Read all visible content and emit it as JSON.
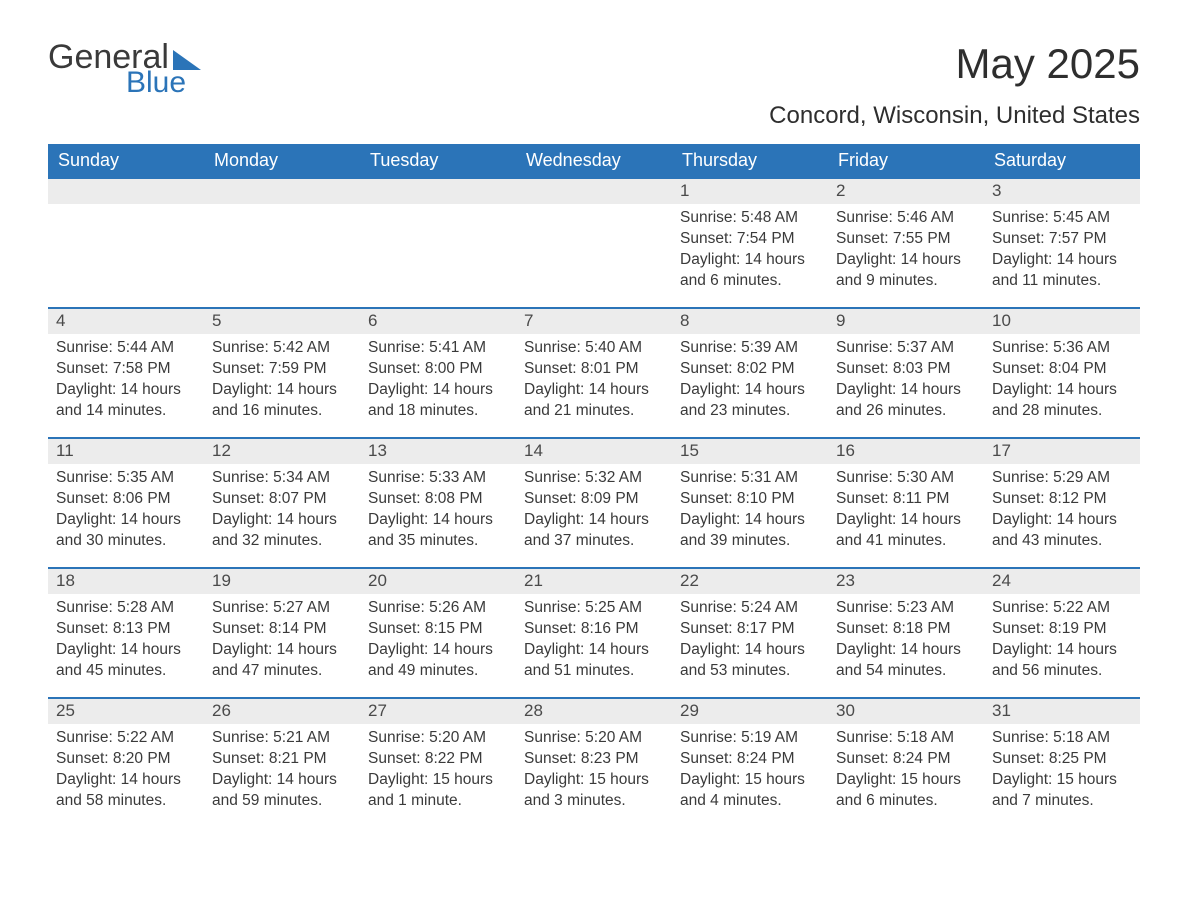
{
  "logo": {
    "word1": "General",
    "word2": "Blue",
    "triangle_color": "#2b74b8"
  },
  "header": {
    "title": "May 2025",
    "location": "Concord, Wisconsin, United States"
  },
  "colors": {
    "header_bg": "#2b74b8",
    "header_text": "#ffffff",
    "daynum_bg": "#ececec",
    "border_top": "#2b74b8",
    "body_text": "#3a3a3a",
    "page_bg": "#ffffff"
  },
  "typography": {
    "title_fontsize": 42,
    "subtitle_fontsize": 24,
    "dow_fontsize": 18,
    "daynum_fontsize": 17,
    "body_fontsize": 15.5,
    "font_family": "Arial"
  },
  "calendar": {
    "columns": [
      "Sunday",
      "Monday",
      "Tuesday",
      "Wednesday",
      "Thursday",
      "Friday",
      "Saturday"
    ],
    "weeks": [
      [
        {
          "day": "",
          "sunrise": "",
          "sunset": "",
          "daylight": ""
        },
        {
          "day": "",
          "sunrise": "",
          "sunset": "",
          "daylight": ""
        },
        {
          "day": "",
          "sunrise": "",
          "sunset": "",
          "daylight": ""
        },
        {
          "day": "",
          "sunrise": "",
          "sunset": "",
          "daylight": ""
        },
        {
          "day": "1",
          "sunrise": "Sunrise: 5:48 AM",
          "sunset": "Sunset: 7:54 PM",
          "daylight": "Daylight: 14 hours and 6 minutes."
        },
        {
          "day": "2",
          "sunrise": "Sunrise: 5:46 AM",
          "sunset": "Sunset: 7:55 PM",
          "daylight": "Daylight: 14 hours and 9 minutes."
        },
        {
          "day": "3",
          "sunrise": "Sunrise: 5:45 AM",
          "sunset": "Sunset: 7:57 PM",
          "daylight": "Daylight: 14 hours and 11 minutes."
        }
      ],
      [
        {
          "day": "4",
          "sunrise": "Sunrise: 5:44 AM",
          "sunset": "Sunset: 7:58 PM",
          "daylight": "Daylight: 14 hours and 14 minutes."
        },
        {
          "day": "5",
          "sunrise": "Sunrise: 5:42 AM",
          "sunset": "Sunset: 7:59 PM",
          "daylight": "Daylight: 14 hours and 16 minutes."
        },
        {
          "day": "6",
          "sunrise": "Sunrise: 5:41 AM",
          "sunset": "Sunset: 8:00 PM",
          "daylight": "Daylight: 14 hours and 18 minutes."
        },
        {
          "day": "7",
          "sunrise": "Sunrise: 5:40 AM",
          "sunset": "Sunset: 8:01 PM",
          "daylight": "Daylight: 14 hours and 21 minutes."
        },
        {
          "day": "8",
          "sunrise": "Sunrise: 5:39 AM",
          "sunset": "Sunset: 8:02 PM",
          "daylight": "Daylight: 14 hours and 23 minutes."
        },
        {
          "day": "9",
          "sunrise": "Sunrise: 5:37 AM",
          "sunset": "Sunset: 8:03 PM",
          "daylight": "Daylight: 14 hours and 26 minutes."
        },
        {
          "day": "10",
          "sunrise": "Sunrise: 5:36 AM",
          "sunset": "Sunset: 8:04 PM",
          "daylight": "Daylight: 14 hours and 28 minutes."
        }
      ],
      [
        {
          "day": "11",
          "sunrise": "Sunrise: 5:35 AM",
          "sunset": "Sunset: 8:06 PM",
          "daylight": "Daylight: 14 hours and 30 minutes."
        },
        {
          "day": "12",
          "sunrise": "Sunrise: 5:34 AM",
          "sunset": "Sunset: 8:07 PM",
          "daylight": "Daylight: 14 hours and 32 minutes."
        },
        {
          "day": "13",
          "sunrise": "Sunrise: 5:33 AM",
          "sunset": "Sunset: 8:08 PM",
          "daylight": "Daylight: 14 hours and 35 minutes."
        },
        {
          "day": "14",
          "sunrise": "Sunrise: 5:32 AM",
          "sunset": "Sunset: 8:09 PM",
          "daylight": "Daylight: 14 hours and 37 minutes."
        },
        {
          "day": "15",
          "sunrise": "Sunrise: 5:31 AM",
          "sunset": "Sunset: 8:10 PM",
          "daylight": "Daylight: 14 hours and 39 minutes."
        },
        {
          "day": "16",
          "sunrise": "Sunrise: 5:30 AM",
          "sunset": "Sunset: 8:11 PM",
          "daylight": "Daylight: 14 hours and 41 minutes."
        },
        {
          "day": "17",
          "sunrise": "Sunrise: 5:29 AM",
          "sunset": "Sunset: 8:12 PM",
          "daylight": "Daylight: 14 hours and 43 minutes."
        }
      ],
      [
        {
          "day": "18",
          "sunrise": "Sunrise: 5:28 AM",
          "sunset": "Sunset: 8:13 PM",
          "daylight": "Daylight: 14 hours and 45 minutes."
        },
        {
          "day": "19",
          "sunrise": "Sunrise: 5:27 AM",
          "sunset": "Sunset: 8:14 PM",
          "daylight": "Daylight: 14 hours and 47 minutes."
        },
        {
          "day": "20",
          "sunrise": "Sunrise: 5:26 AM",
          "sunset": "Sunset: 8:15 PM",
          "daylight": "Daylight: 14 hours and 49 minutes."
        },
        {
          "day": "21",
          "sunrise": "Sunrise: 5:25 AM",
          "sunset": "Sunset: 8:16 PM",
          "daylight": "Daylight: 14 hours and 51 minutes."
        },
        {
          "day": "22",
          "sunrise": "Sunrise: 5:24 AM",
          "sunset": "Sunset: 8:17 PM",
          "daylight": "Daylight: 14 hours and 53 minutes."
        },
        {
          "day": "23",
          "sunrise": "Sunrise: 5:23 AM",
          "sunset": "Sunset: 8:18 PM",
          "daylight": "Daylight: 14 hours and 54 minutes."
        },
        {
          "day": "24",
          "sunrise": "Sunrise: 5:22 AM",
          "sunset": "Sunset: 8:19 PM",
          "daylight": "Daylight: 14 hours and 56 minutes."
        }
      ],
      [
        {
          "day": "25",
          "sunrise": "Sunrise: 5:22 AM",
          "sunset": "Sunset: 8:20 PM",
          "daylight": "Daylight: 14 hours and 58 minutes."
        },
        {
          "day": "26",
          "sunrise": "Sunrise: 5:21 AM",
          "sunset": "Sunset: 8:21 PM",
          "daylight": "Daylight: 14 hours and 59 minutes."
        },
        {
          "day": "27",
          "sunrise": "Sunrise: 5:20 AM",
          "sunset": "Sunset: 8:22 PM",
          "daylight": "Daylight: 15 hours and 1 minute."
        },
        {
          "day": "28",
          "sunrise": "Sunrise: 5:20 AM",
          "sunset": "Sunset: 8:23 PM",
          "daylight": "Daylight: 15 hours and 3 minutes."
        },
        {
          "day": "29",
          "sunrise": "Sunrise: 5:19 AM",
          "sunset": "Sunset: 8:24 PM",
          "daylight": "Daylight: 15 hours and 4 minutes."
        },
        {
          "day": "30",
          "sunrise": "Sunrise: 5:18 AM",
          "sunset": "Sunset: 8:24 PM",
          "daylight": "Daylight: 15 hours and 6 minutes."
        },
        {
          "day": "31",
          "sunrise": "Sunrise: 5:18 AM",
          "sunset": "Sunset: 8:25 PM",
          "daylight": "Daylight: 15 hours and 7 minutes."
        }
      ]
    ]
  }
}
